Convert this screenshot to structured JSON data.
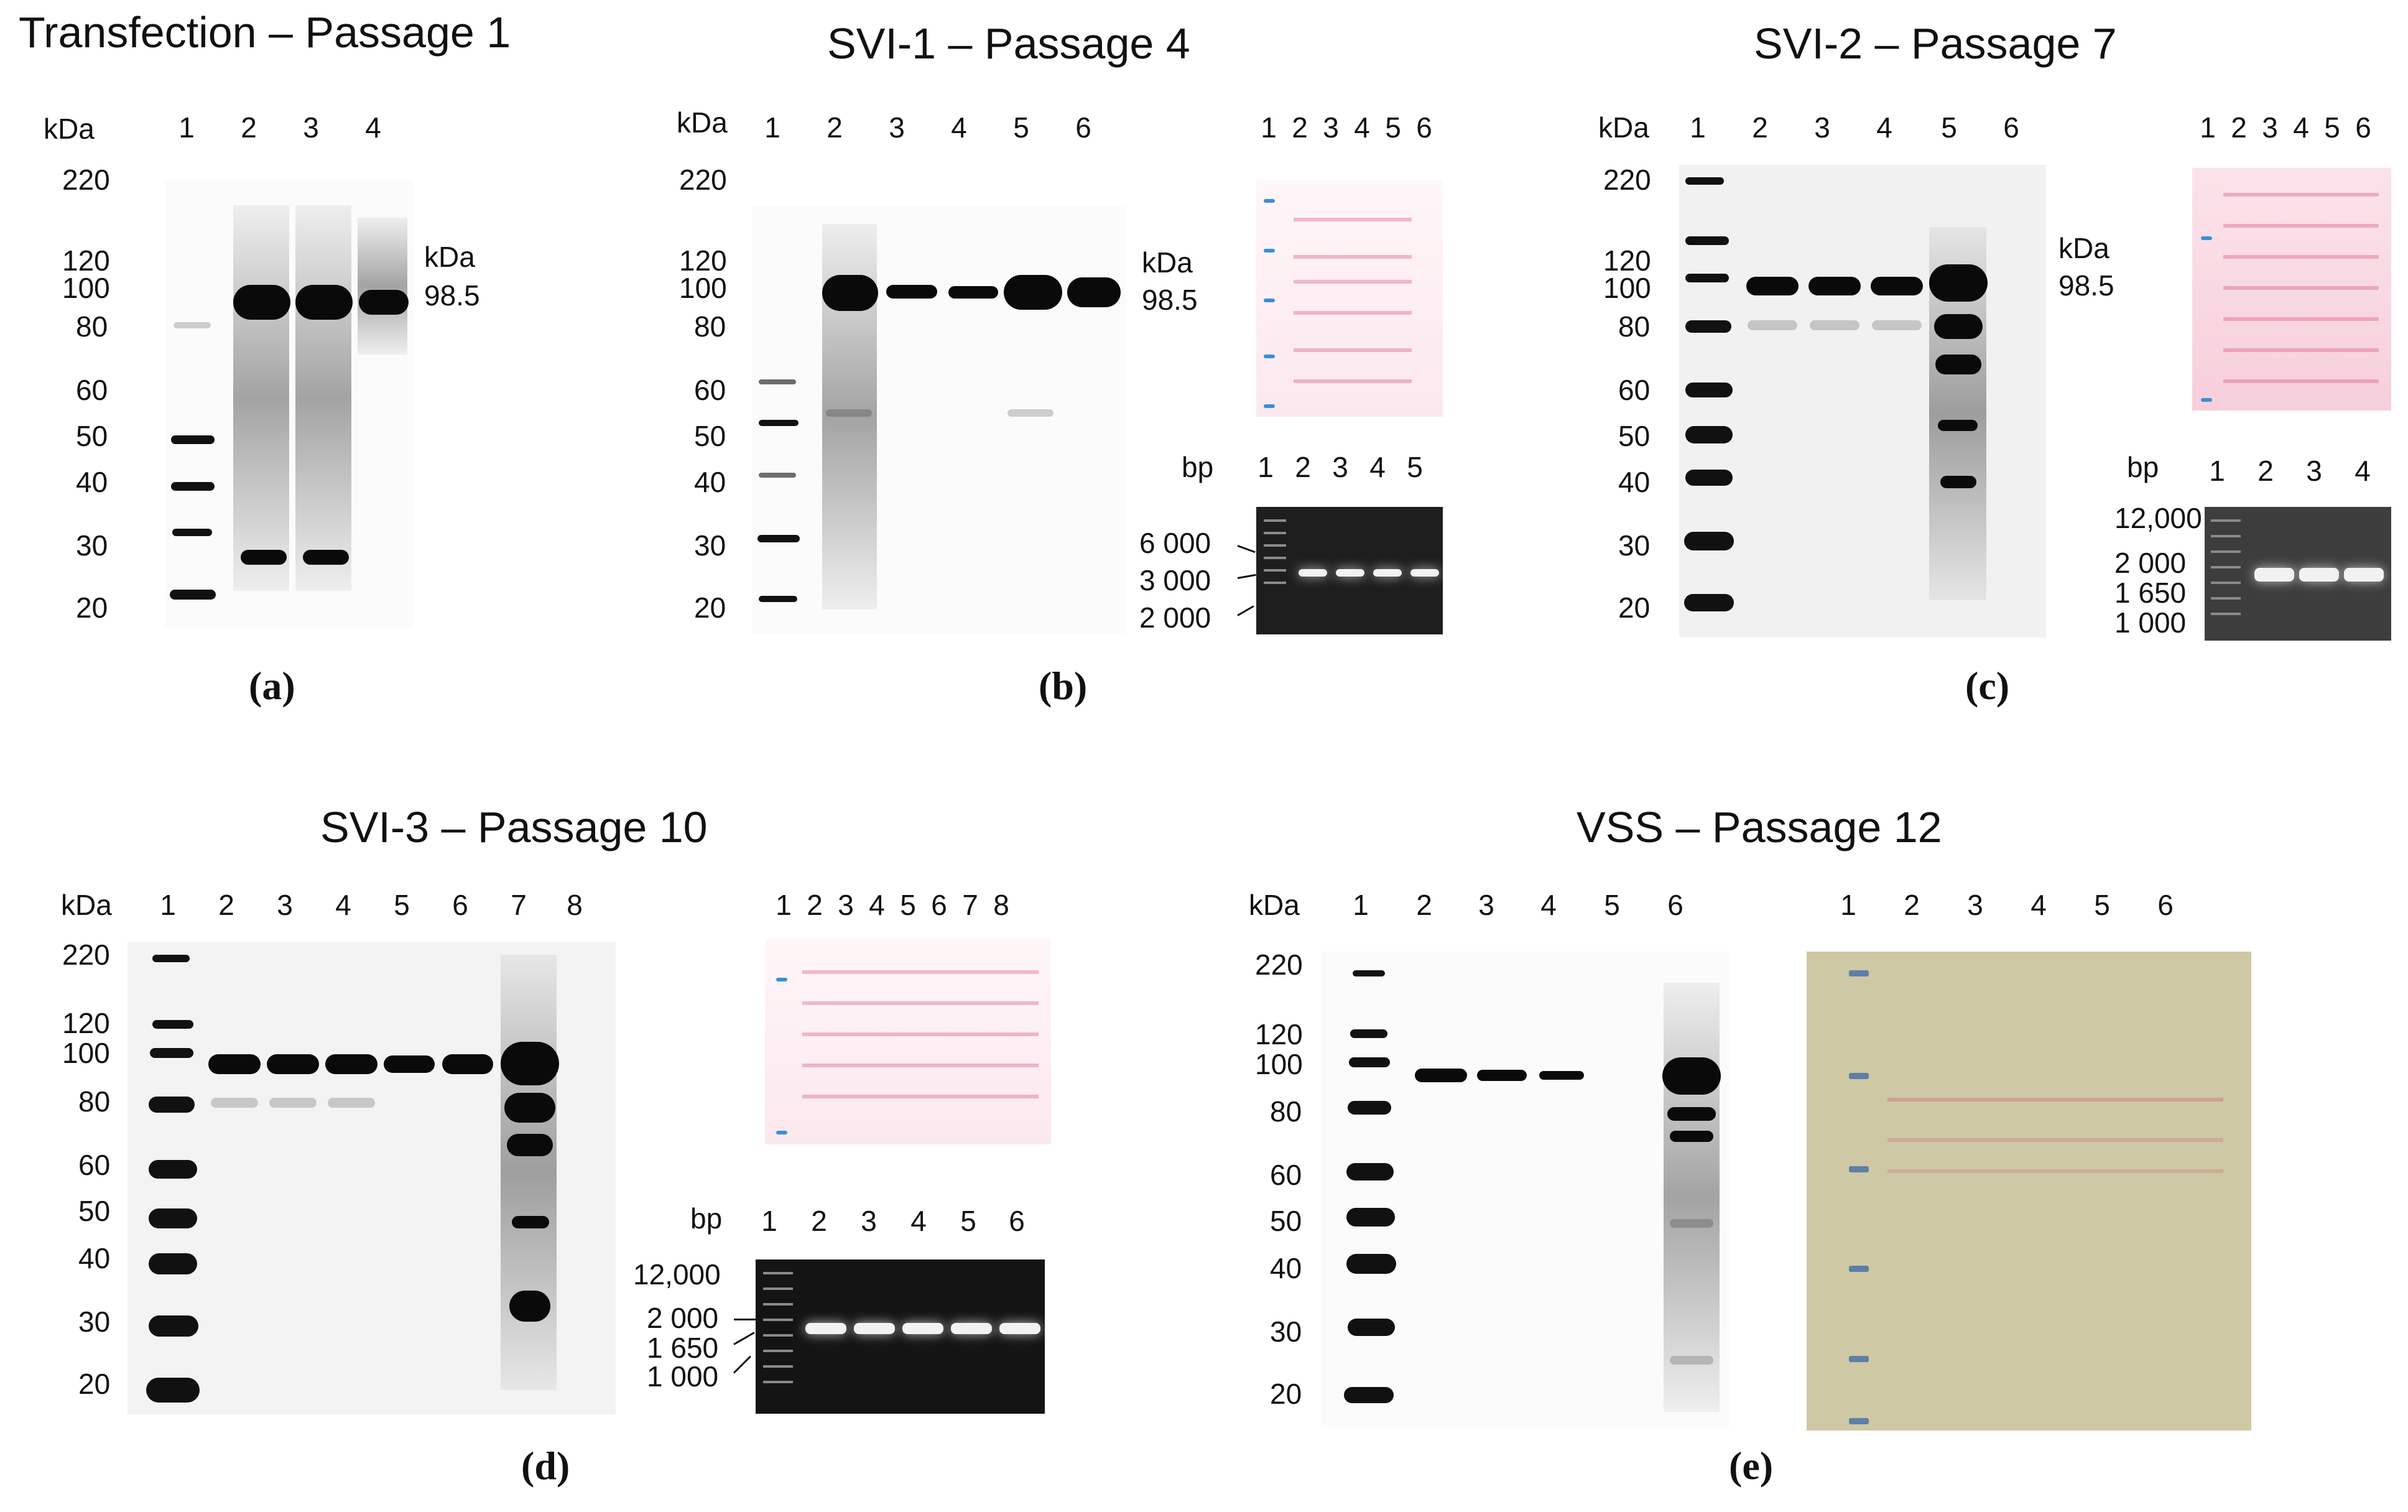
{
  "panels": {
    "a": {
      "title": "Transfection – Passage 1",
      "unit": "kDa",
      "lanes": [
        "1",
        "2",
        "3",
        "4"
      ],
      "markers": [
        "220",
        "120",
        "100",
        "80",
        "60",
        "50",
        "40",
        "30",
        "20"
      ],
      "side_unit": "kDa",
      "side_value": "98.5",
      "caption": "(a)"
    },
    "b": {
      "title": "SVI-1 – Passage 4",
      "unit": "kDa",
      "lanes": [
        "1",
        "2",
        "3",
        "4",
        "5",
        "6"
      ],
      "markers": [
        "220",
        "120",
        "100",
        "80",
        "60",
        "50",
        "40",
        "30",
        "20"
      ],
      "side_unit": "kDa",
      "side_value": "98.5",
      "stain_lanes": [
        "1",
        "2",
        "3",
        "4",
        "5",
        "6"
      ],
      "gel_unit": "bp",
      "gel_lanes": [
        "1",
        "2",
        "3",
        "4",
        "5"
      ],
      "gel_markers": [
        "6 000",
        "3 000",
        "2 000"
      ],
      "caption": "(b)"
    },
    "c": {
      "title": "SVI-2 – Passage 7",
      "unit": "kDa",
      "lanes": [
        "1",
        "2",
        "3",
        "4",
        "5",
        "6"
      ],
      "markers": [
        "220",
        "120",
        "100",
        "80",
        "60",
        "50",
        "40",
        "30",
        "20"
      ],
      "side_unit": "kDa",
      "side_value": "98.5",
      "stain_lanes": [
        "1",
        "2",
        "3",
        "4",
        "5",
        "6"
      ],
      "gel_unit": "bp",
      "gel_lanes": [
        "1",
        "2",
        "3",
        "4"
      ],
      "gel_markers": [
        "12,000",
        "2 000",
        "1 650",
        "1 000"
      ],
      "caption": "(c)"
    },
    "d": {
      "title": "SVI-3 – Passage 10",
      "unit": "kDa",
      "lanes": [
        "1",
        "2",
        "3",
        "4",
        "5",
        "6",
        "7",
        "8"
      ],
      "markers": [
        "220",
        "120",
        "100",
        "80",
        "60",
        "50",
        "40",
        "30",
        "20"
      ],
      "stain_lanes": [
        "1",
        "2",
        "3",
        "4",
        "5",
        "6",
        "7",
        "8"
      ],
      "gel_unit": "bp",
      "gel_lanes": [
        "1",
        "2",
        "3",
        "4",
        "5",
        "6"
      ],
      "gel_markers": [
        "12,000",
        "2 000",
        "1 650",
        "1 000"
      ],
      "caption": "(d)"
    },
    "e": {
      "title": "VSS – Passage 12",
      "unit": "kDa",
      "lanes": [
        "1",
        "2",
        "3",
        "4",
        "5",
        "6"
      ],
      "markers": [
        "220",
        "120",
        "100",
        "80",
        "60",
        "50",
        "40",
        "30",
        "20"
      ],
      "stain_lanes": [
        "1",
        "2",
        "3",
        "4",
        "5",
        "6"
      ],
      "caption": "(e)"
    }
  }
}
